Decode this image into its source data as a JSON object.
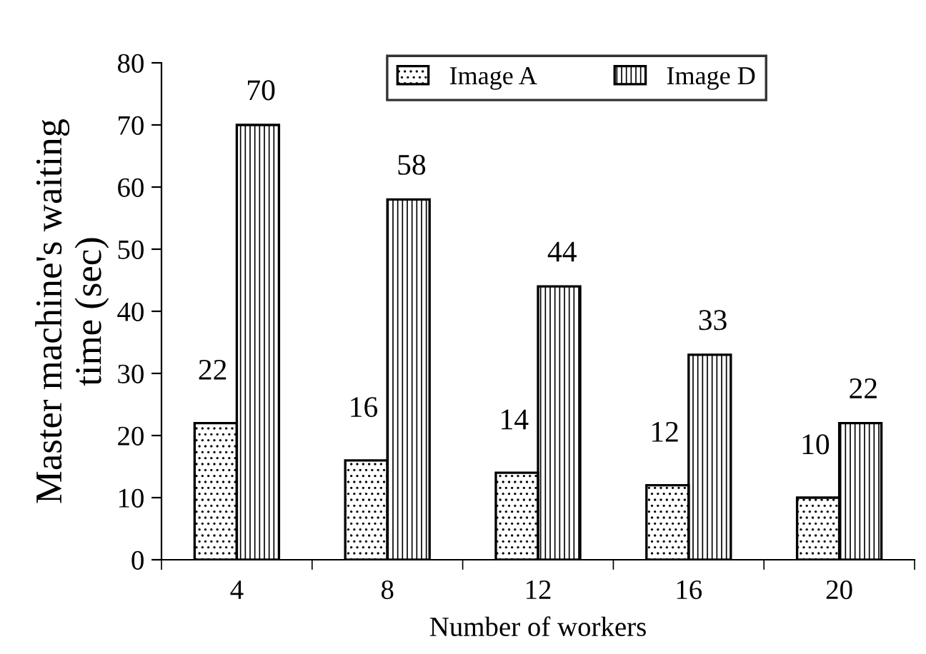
{
  "chart_data": {
    "type": "bar",
    "xlabel": "Number of workers",
    "ylabel": "Master machine's waiting\ntime (sec)",
    "categories": [
      "4",
      "8",
      "12",
      "16",
      "20"
    ],
    "series": [
      {
        "name": "Image A",
        "color": "#000000",
        "values": [
          22,
          16,
          14,
          12,
          10
        ]
      },
      {
        "name": "Image D",
        "color": "#000000",
        "values": [
          70,
          58,
          44,
          33,
          22
        ]
      }
    ],
    "ylim": [
      0,
      80
    ],
    "yticks": [
      0,
      10,
      20,
      30,
      40,
      50,
      60,
      70,
      80
    ],
    "data_labels": true,
    "legend": "top right",
    "grid": false
  }
}
